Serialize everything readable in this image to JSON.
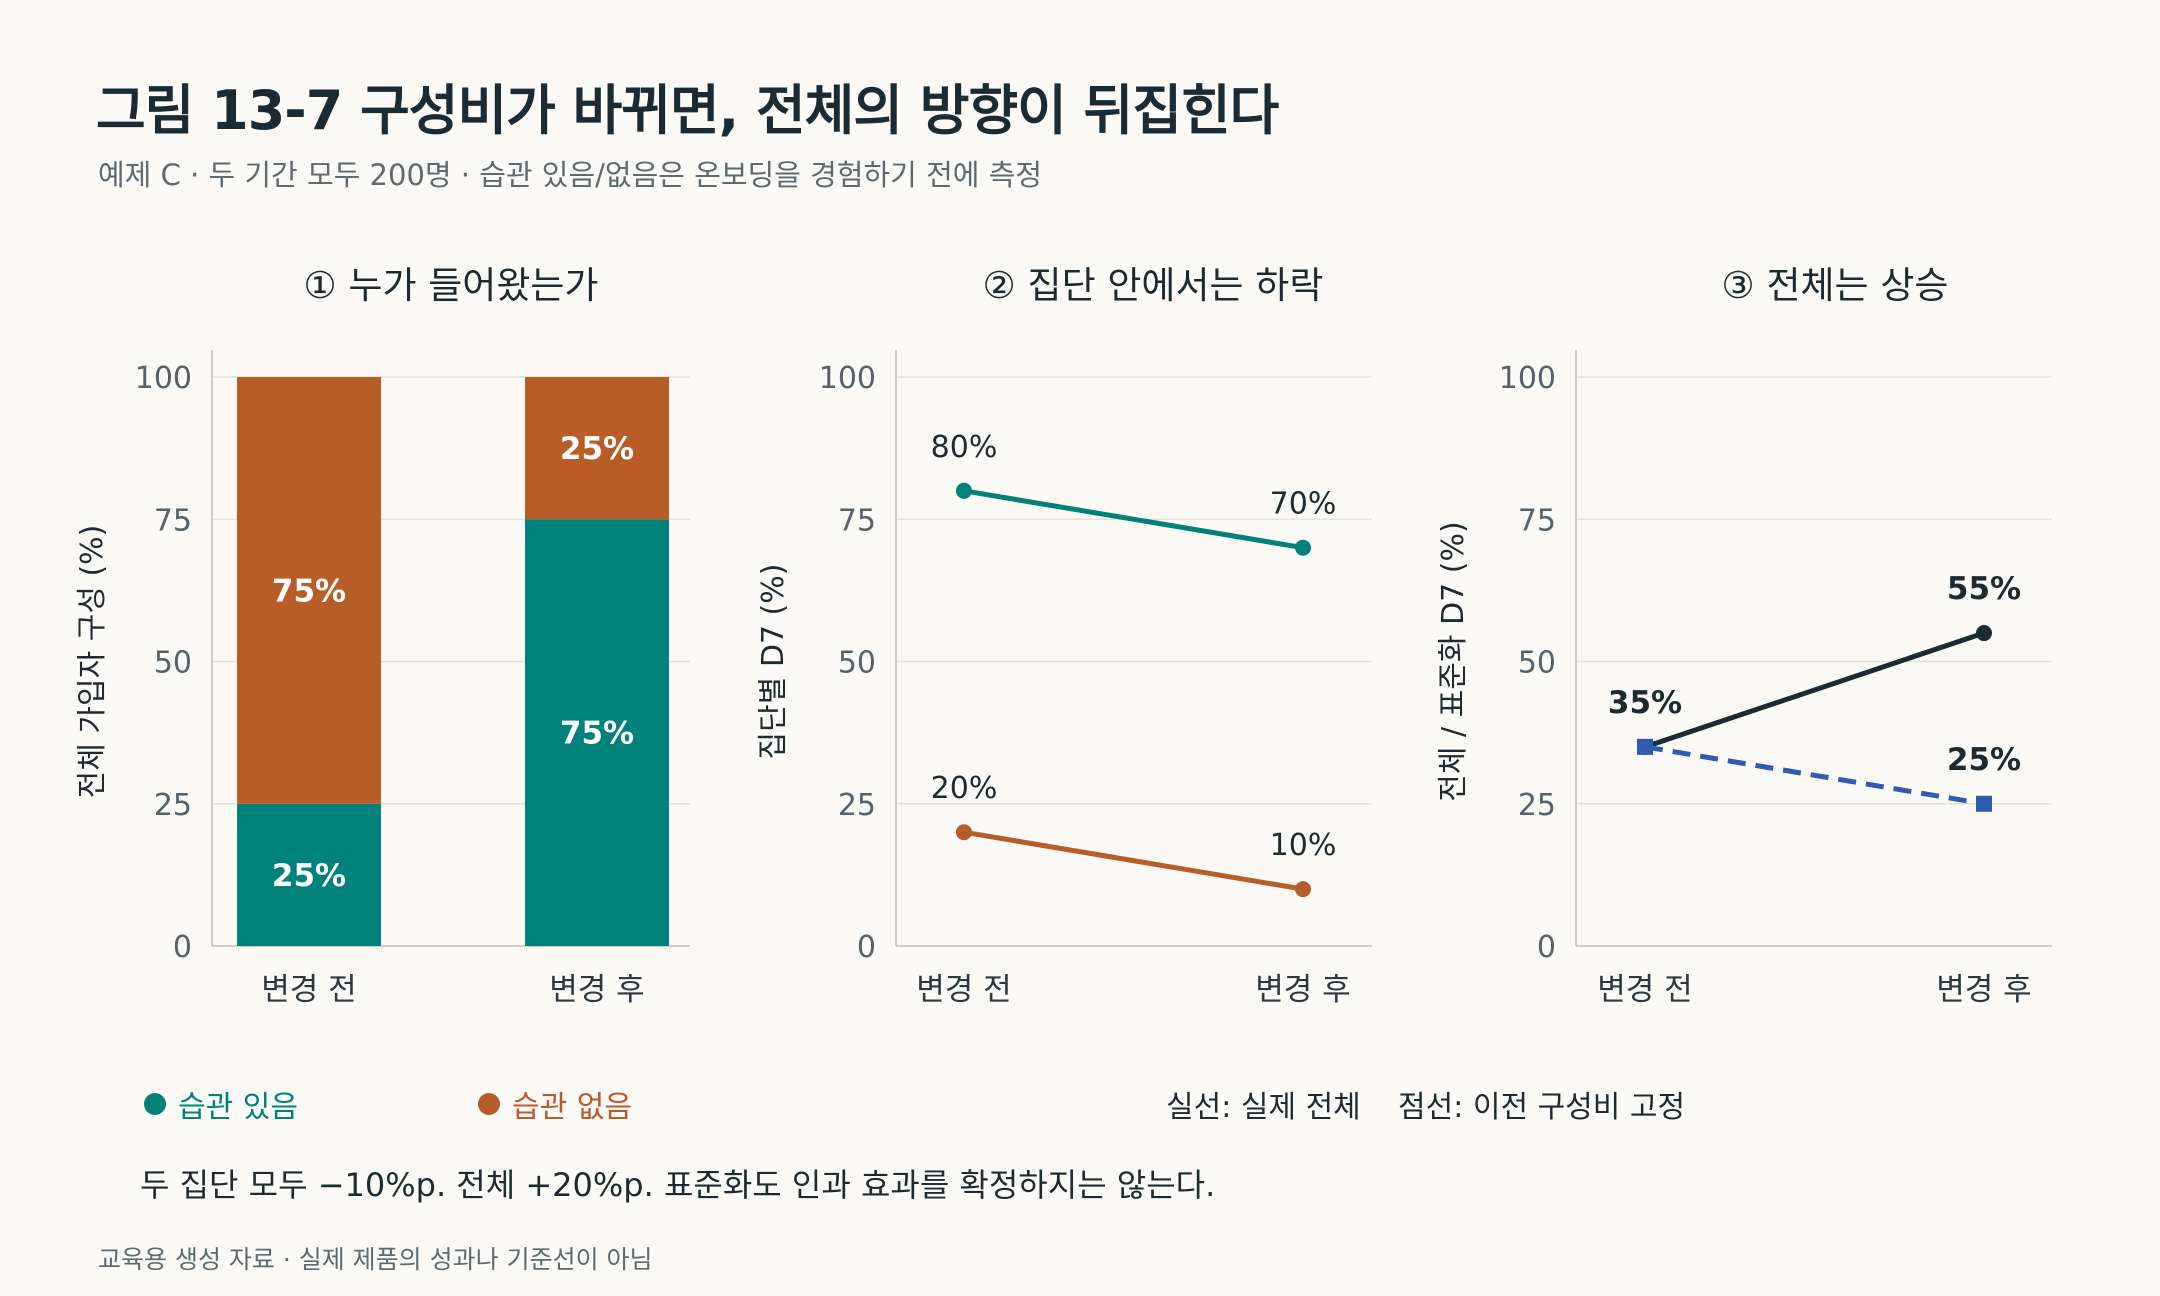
{
  "header": {
    "title": "그림 13-7  구성비가 바뀌면, 전체의 방향이 뒤집힌다",
    "subtitle": "예제 C · 두 기간 모두 200명 · 습관 있음/없음은 온보딩을 경험하기 전에 측정"
  },
  "colors": {
    "habit": "#00827a",
    "nohabit": "#b85c28",
    "overall": "#1b2c33",
    "standardized": "#2e5bb4",
    "grid": "#e3e2dd",
    "axis": "#cfcdc7"
  },
  "chart_data": [
    {
      "type": "bar",
      "title": "① 누가 들어왔는가",
      "ylabel": "전체 가입자 구성 (%)",
      "categories": [
        "변경 전",
        "변경 후"
      ],
      "yticks": [
        "0",
        "25",
        "50",
        "75",
        "100"
      ],
      "ylim": [
        0,
        100
      ],
      "stacked": true,
      "series": [
        {
          "name": "습관 있음",
          "values": [
            25,
            75
          ],
          "labels": [
            "25%",
            "75%"
          ]
        },
        {
          "name": "습관 없음",
          "values": [
            75,
            25
          ],
          "labels": [
            "75%",
            "25%"
          ]
        }
      ]
    },
    {
      "type": "line",
      "title": "② 집단 안에서는 하락",
      "ylabel": "집단별 D7 (%)",
      "categories": [
        "변경 전",
        "변경 후"
      ],
      "yticks": [
        "0",
        "25",
        "50",
        "75",
        "100"
      ],
      "ylim": [
        0,
        100
      ],
      "series": [
        {
          "name": "습관 있음",
          "values": [
            80,
            70
          ],
          "labels": [
            "80%",
            "70%"
          ]
        },
        {
          "name": "습관 없음",
          "values": [
            20,
            10
          ],
          "labels": [
            "20%",
            "10%"
          ]
        }
      ]
    },
    {
      "type": "line",
      "title": "③ 전체는 상승",
      "ylabel": "전체 / 표준화 D7 (%)",
      "categories": [
        "변경 전",
        "변경 후"
      ],
      "yticks": [
        "0",
        "25",
        "50",
        "75",
        "100"
      ],
      "ylim": [
        0,
        100
      ],
      "series": [
        {
          "name": "실제 전체",
          "values": [
            35,
            55
          ],
          "labels": [
            "35%",
            "55%"
          ],
          "style": "solid"
        },
        {
          "name": "이전 구성비 고정",
          "values": [
            35,
            25
          ],
          "labels": [
            "",
            "25%"
          ],
          "style": "dashed"
        }
      ]
    }
  ],
  "legend": {
    "habit": "습관 있음",
    "nohabit": "습관 없음",
    "solid_note": "실선: 실제 전체",
    "dashed_note": "점선: 이전 구성비 고정"
  },
  "note": "두 집단 모두 −10%p. 전체 +20%p. 표준화도 인과 효과를 확정하지는 않는다.",
  "footer": "교육용 생성 자료 · 실제 제품의 성과나 기준선이 아님"
}
